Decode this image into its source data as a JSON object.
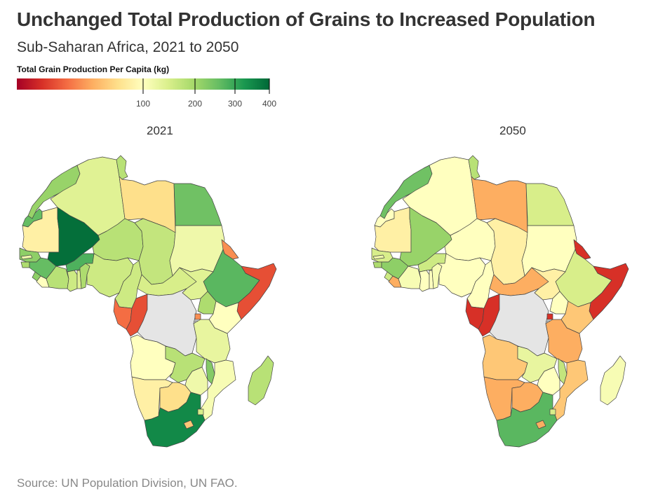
{
  "title": "Unchanged Total Production of Grains to Increased Population",
  "subtitle": "Sub-Saharan Africa, 2021 to 2050",
  "legend": {
    "title": "Total Grain Production Per Capita (kg)",
    "ticks": [
      "100",
      "200",
      "300",
      "400"
    ],
    "tick_values": [
      100,
      200,
      300,
      400
    ],
    "range": [
      0,
      400
    ],
    "colors": [
      "#a50026",
      "#d73027",
      "#f46d43",
      "#fdae61",
      "#fee08b",
      "#ffffbf",
      "#d9ef8b",
      "#a6d96a",
      "#66bd63",
      "#1a9850",
      "#006837"
    ]
  },
  "panels": [
    {
      "label": "2021"
    },
    {
      "label": "2050"
    }
  ],
  "no_data_color": "#e5e5e5",
  "map_data": {
    "2021": {
      "morocco": 210,
      "algeria": 140,
      "tunisia": 180,
      "libya": 80,
      "egypt": 250,
      "western_sahara": 260,
      "mauritania": 90,
      "mali": 390,
      "niger": 180,
      "chad": 170,
      "sudan": 120,
      "senegal": 220,
      "gambia": 120,
      "guinea_bissau": 190,
      "guinea": 260,
      "sierra_leone": 220,
      "liberia": 100,
      "ivory_coast": 180,
      "ghana": 160,
      "togo": 140,
      "benin": 190,
      "burkina_faso": 280,
      "nigeria": 160,
      "cameroon": 160,
      "car": 150,
      "south_sudan": 140,
      "eritrea": 50,
      "ethiopia": 270,
      "somalia": 30,
      "kenya": 100,
      "uganda": 190,
      "gabon": 40,
      "congo": 30,
      "tanzania": 130,
      "rwanda": 50,
      "angola": 100,
      "zambia": 180,
      "malawi": 230,
      "mozambique": 110,
      "zimbabwe": 120,
      "namibia": 90,
      "botswana": 80,
      "south_africa": 350,
      "lesotho": 70,
      "eswatini": 150,
      "madagascar": 180
    },
    "2050": {
      "morocco": 250,
      "algeria": 100,
      "tunisia": 180,
      "libya": 60,
      "egypt": 150,
      "western_sahara": 100,
      "mauritania": 90,
      "mali": 210,
      "niger": 100,
      "chad": 90,
      "sudan": 100,
      "senegal": 150,
      "gambia": 120,
      "guinea_bissau": 190,
      "guinea": 220,
      "sierra_leone": 160,
      "liberia": 60,
      "ivory_coast": 110,
      "ghana": 100,
      "togo": 100,
      "benin": 110,
      "burkina_faso": 160,
      "nigeria": 100,
      "cameroon": 100,
      "car": 60,
      "south_sudan": 90,
      "eritrea": 20,
      "ethiopia": 150,
      "somalia": 20,
      "kenya": 70,
      "uganda": 100,
      "gabon": 20,
      "congo": 20,
      "tanzania": 60,
      "rwanda": 20,
      "angola": 70,
      "zambia": 130,
      "malawi": 170,
      "mozambique": 70,
      "zimbabwe": 100,
      "namibia": 60,
      "botswana": 60,
      "south_africa": 270,
      "lesotho": 60,
      "eswatini": 150,
      "madagascar": 110
    }
  },
  "source": "Source: UN Population Division, UN FAO."
}
